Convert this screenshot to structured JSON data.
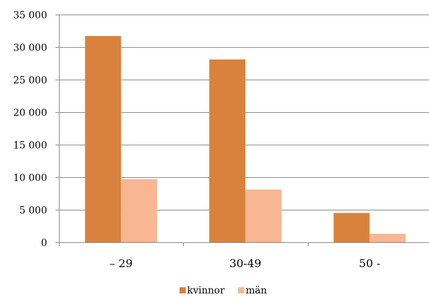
{
  "chart_data": {
    "type": "bar",
    "categories": [
      "– 29",
      "30-49",
      "50 -"
    ],
    "series": [
      {
        "name": "kvinnor",
        "values": [
          31700,
          28100,
          4500
        ],
        "color": "#D9823D"
      },
      {
        "name": "män",
        "values": [
          9700,
          8100,
          1300
        ],
        "color": "#F8B692"
      }
    ],
    "yticks": [
      "0",
      "5 000",
      "10 000",
      "15 000",
      "20 000",
      "25 000",
      "30 000",
      "35 000"
    ],
    "ylim": [
      0,
      35000
    ],
    "ytick_step": 5000,
    "grid": true,
    "legend": "bottom",
    "title": "",
    "xlabel": "",
    "ylabel": ""
  }
}
